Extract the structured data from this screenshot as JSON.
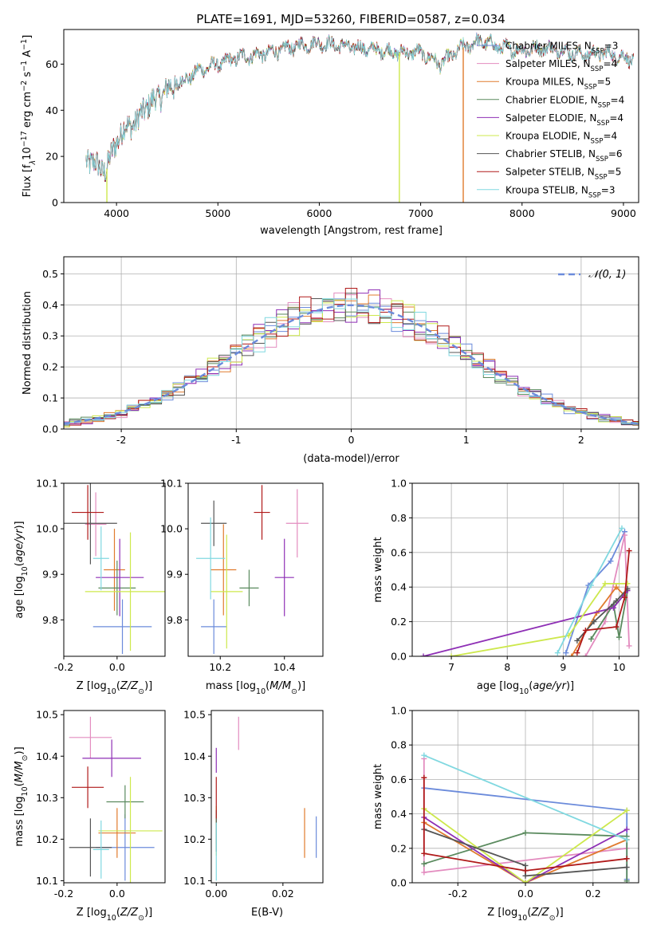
{
  "figure": {
    "title": "PLATE=1691, MJD=53260, FIBERID=0587, z=0.034"
  },
  "series": [
    {
      "name": "Chabrier MILES",
      "nssp": "3",
      "color": "#6b8bdb"
    },
    {
      "name": "Salpeter MILES",
      "nssp": "4",
      "color": "#e38cbf"
    },
    {
      "name": "Kroupa MILES",
      "nssp": "5",
      "color": "#e07b2e"
    },
    {
      "name": "Chabrier ELODIE",
      "nssp": "4",
      "color": "#5a8a5e"
    },
    {
      "name": "Salpeter ELODIE",
      "nssp": "4",
      "color": "#8e2fb5"
    },
    {
      "name": "Kroupa ELODIE",
      "nssp": "4",
      "color": "#cde84c"
    },
    {
      "name": "Chabrier STELIB",
      "nssp": "6",
      "color": "#555555"
    },
    {
      "name": "Salpeter STELIB",
      "nssp": "5",
      "color": "#b01a1a"
    },
    {
      "name": "Kroupa STELIB",
      "nssp": "3",
      "color": "#80d8e0"
    }
  ],
  "chart_data": [
    {
      "id": "spectrum",
      "type": "line",
      "xlabel": "wavelength [Angstrom, rest frame]",
      "ylabel_main": "Flux [f",
      "ylabel_sub": "λ",
      "ylabel_rest": "10",
      "ylabel_exp1": "−17",
      "ylabel_unit": " erg cm",
      "ylabel_exp2": "−2",
      "ylabel_s": " s",
      "ylabel_exp3": "−1",
      "ylabel_a": " A",
      "ylabel_exp4": "−1",
      "ylabel_end": "]",
      "xlim": [
        3480,
        9150
      ],
      "ylim": [
        0,
        75
      ],
      "xticks": [
        4000,
        5000,
        6000,
        7000,
        8000,
        9000
      ],
      "yticks": [
        0,
        20,
        40,
        60
      ],
      "legend_position": "right",
      "continuum_x": [
        3700,
        3800,
        3900,
        4000,
        4100,
        4200,
        4300,
        4400,
        4500,
        4600,
        4800,
        5000,
        5200,
        5400,
        5600,
        5800,
        6000,
        6200,
        6400,
        6600,
        6800,
        7000,
        7200,
        7400,
        7600,
        7800,
        8000,
        8200,
        8400,
        8600,
        8800,
        9000,
        9100
      ],
      "continuum_y": [
        19,
        16,
        14,
        27,
        33,
        35,
        42,
        45,
        49,
        51,
        57,
        60,
        63,
        64,
        66,
        68,
        69,
        68,
        67,
        66,
        65,
        65,
        60,
        67,
        70,
        67,
        66,
        67,
        66,
        64,
        65,
        63,
        62
      ],
      "drops": [
        {
          "x": 3905,
          "color": "#cde84c"
        },
        {
          "x": 6790,
          "color": "#cde84c"
        },
        {
          "x": 7420,
          "color": "#e07b2e"
        }
      ]
    },
    {
      "id": "residual-histogram",
      "type": "histogram",
      "xlabel": "(data-model)/error",
      "ylabel": "Normed distribution",
      "xlim": [
        -2.5,
        2.5
      ],
      "ylim": [
        0,
        0.555
      ],
      "xticks": [
        -2,
        -1,
        0,
        1,
        2
      ],
      "yticks": [
        0.0,
        0.1,
        0.2,
        0.3,
        0.4,
        0.5
      ],
      "bin_width": 0.1,
      "reference": {
        "label": "𝒩(0, 1)",
        "color": "#6b8bdb",
        "style": "dashed"
      },
      "legend_position": "top-right",
      "grid": true
    },
    {
      "id": "age-vs-z",
      "type": "errorbar",
      "xlabel": "Z [log10(Z/Z⊙)]",
      "ylabel": "age  [log10(age/yr)]",
      "xlim": [
        -0.2,
        0.18
      ],
      "ylim": [
        9.72,
        10.1
      ],
      "xticks": [
        -0.2,
        0.0
      ],
      "yticks": [
        9.8,
        9.9,
        10.0,
        10.1
      ],
      "points": [
        {
          "x": 0.02,
          "y": 9.785,
          "xerr": 0.11,
          "yerr": 0.06
        },
        {
          "x": -0.08,
          "y": 10.01,
          "xerr": 0.04,
          "yerr": 0.07
        },
        {
          "x": -0.01,
          "y": 9.91,
          "xerr": 0.04,
          "yerr": 0.09
        },
        {
          "x": 0.0,
          "y": 9.87,
          "xerr": 0.07,
          "yerr": 0.06
        },
        {
          "x": 0.01,
          "y": 9.893,
          "xerr": 0.09,
          "yerr": 0.085
        },
        {
          "x": 0.05,
          "y": 9.862,
          "xerr": 0.17,
          "yerr": 0.13
        },
        {
          "x": -0.1,
          "y": 10.012,
          "xerr": 0.1,
          "yerr": 0.09
        },
        {
          "x": -0.11,
          "y": 10.036,
          "xerr": 0.06,
          "yerr": 0.06
        },
        {
          "x": -0.06,
          "y": 9.935,
          "xerr": 0.03,
          "yerr": 0.07
        }
      ]
    },
    {
      "id": "age-vs-mass",
      "type": "errorbar",
      "xlabel": "mass [log10(M/M⊙)]",
      "xlim": [
        10.1,
        10.52
      ],
      "ylim": [
        9.72,
        10.1
      ],
      "xticks": [
        10.2,
        10.4
      ],
      "yticks": [
        9.8,
        9.9,
        10.0,
        10.1
      ],
      "points": [
        {
          "x": 10.18,
          "y": 9.785,
          "xerr": 0.04,
          "yerr": 0.06
        },
        {
          "x": 10.44,
          "y": 10.012,
          "xerr": 0.035,
          "yerr": 0.075
        },
        {
          "x": 10.21,
          "y": 9.91,
          "xerr": 0.04,
          "yerr": 0.1
        },
        {
          "x": 10.29,
          "y": 9.87,
          "xerr": 0.03,
          "yerr": 0.04
        },
        {
          "x": 10.4,
          "y": 9.893,
          "xerr": 0.03,
          "yerr": 0.085
        },
        {
          "x": 10.22,
          "y": 9.862,
          "xerr": 0.05,
          "yerr": 0.125
        },
        {
          "x": 10.18,
          "y": 10.012,
          "xerr": 0.04,
          "yerr": 0.05
        },
        {
          "x": 10.33,
          "y": 10.036,
          "xerr": 0.025,
          "yerr": 0.06
        },
        {
          "x": 10.17,
          "y": 9.935,
          "xerr": 0.045,
          "yerr": 0.09
        }
      ]
    },
    {
      "id": "mass-weight-vs-age",
      "type": "line",
      "xlabel": "age  [log10(age/yr)]",
      "ylabel": "mass weight",
      "xlim": [
        6.3,
        10.35
      ],
      "ylim": [
        0,
        1.0
      ],
      "xticks": [
        7,
        8,
        9,
        10
      ],
      "yticks": [
        0.0,
        0.2,
        0.4,
        0.6,
        0.8,
        1.0
      ],
      "grid": true,
      "lines": [
        {
          "x": [
            9.05,
            9.45,
            9.85,
            10.1
          ],
          "y": [
            0.02,
            0.41,
            0.55,
            0.72
          ]
        },
        {
          "x": [
            9.4,
            9.75,
            10.1,
            10.18
          ],
          "y": [
            0.0,
            0.2,
            0.7,
            0.06
          ]
        },
        {
          "x": [
            9.15,
            9.6,
            9.95,
            10.1
          ],
          "y": [
            0.0,
            0.25,
            0.4,
            0.35
          ]
        },
        {
          "x": [
            9.5,
            9.9,
            10.0,
            10.15
          ],
          "y": [
            0.1,
            0.3,
            0.11,
            0.38
          ]
        },
        {
          "x": [
            6.5,
            9.9,
            10.15
          ],
          "y": [
            0.0,
            0.28,
            0.38
          ]
        },
        {
          "x": [
            7.0,
            9.1,
            9.75,
            10.15
          ],
          "y": [
            0.0,
            0.12,
            0.42,
            0.42
          ]
        },
        {
          "x": [
            9.25,
            9.55,
            9.95,
            10.15
          ],
          "y": [
            0.09,
            0.2,
            0.32,
            0.39
          ]
        },
        {
          "x": [
            9.25,
            9.4,
            9.95,
            10.1,
            10.18
          ],
          "y": [
            0.02,
            0.15,
            0.17,
            0.34,
            0.61
          ]
        },
        {
          "x": [
            8.9,
            9.5,
            10.05
          ],
          "y": [
            0.02,
            0.41,
            0.74
          ]
        }
      ]
    },
    {
      "id": "mass-vs-z",
      "type": "errorbar",
      "xlabel": "Z [log10(Z/Z⊙)]",
      "ylabel": "mass [log10(M/M⊙)]",
      "xlim": [
        -0.2,
        0.18
      ],
      "ylim": [
        10.095,
        10.51
      ],
      "xticks": [
        -0.2,
        0.0
      ],
      "yticks": [
        10.1,
        10.2,
        10.3,
        10.4,
        10.5
      ],
      "points": [
        {
          "x": 0.03,
          "y": 10.18,
          "xerr": 0.11,
          "yerr": 0.08
        },
        {
          "x": -0.1,
          "y": 10.445,
          "xerr": 0.08,
          "yerr": 0.05
        },
        {
          "x": 0.0,
          "y": 10.215,
          "xerr": 0.07,
          "yerr": 0.06
        },
        {
          "x": 0.03,
          "y": 10.29,
          "xerr": 0.07,
          "yerr": 0.04
        },
        {
          "x": -0.02,
          "y": 10.395,
          "xerr": 0.11,
          "yerr": 0.045
        },
        {
          "x": 0.05,
          "y": 10.22,
          "xerr": 0.12,
          "yerr": 0.13
        },
        {
          "x": -0.1,
          "y": 10.18,
          "xerr": 0.08,
          "yerr": 0.07
        },
        {
          "x": -0.11,
          "y": 10.325,
          "xerr": 0.06,
          "yerr": 0.05
        },
        {
          "x": -0.06,
          "y": 10.175,
          "xerr": 0.03,
          "yerr": 0.07
        }
      ]
    },
    {
      "id": "mass-vs-ebv",
      "type": "errorbar",
      "xlabel": "E(B-V)",
      "xlim": [
        -0.0015,
        0.032
      ],
      "ylim": [
        10.095,
        10.51
      ],
      "xticks": [
        0.0,
        0.02
      ],
      "yticks": [
        10.1,
        10.2,
        10.3,
        10.4,
        10.5
      ],
      "points": [
        {
          "x": 0.03,
          "y": 10.205,
          "xerr": 0.0,
          "yerr": 0.05
        },
        {
          "x": 0.0067,
          "y": 10.455,
          "xerr": 0.0,
          "yerr": 0.04
        },
        {
          "x": 0.0265,
          "y": 10.215,
          "xerr": 0.0,
          "yerr": 0.06
        },
        {
          "x": 0.0,
          "y": 10.22,
          "xerr": 0.0,
          "yerr": 0.03
        },
        {
          "x": 0.0,
          "y": 10.39,
          "xerr": 0.0,
          "yerr": 0.03
        },
        {
          "x": 0.0,
          "y": 10.22,
          "xerr": 0.0,
          "yerr": 0.06
        },
        {
          "x": 0.0,
          "y": 10.22,
          "xerr": 0.0,
          "yerr": 0.05
        },
        {
          "x": 0.0,
          "y": 10.3,
          "xerr": 0.0,
          "yerr": 0.05
        },
        {
          "x": 0.0,
          "y": 10.17,
          "xerr": 0.0,
          "yerr": 0.07
        }
      ]
    },
    {
      "id": "mass-weight-vs-z",
      "type": "line",
      "xlabel": "Z [log10(Z/Z⊙)]",
      "ylabel": "mass weight",
      "xlim": [
        -0.335,
        0.335
      ],
      "ylim": [
        0,
        1.0
      ],
      "xticks": [
        -0.2,
        0.0,
        0.2
      ],
      "yticks": [
        0.0,
        0.2,
        0.4,
        0.6,
        0.8,
        1.0
      ],
      "grid": true,
      "lines": [
        {
          "x": [
            -0.3,
            0.3,
            0.3
          ],
          "y": [
            0.55,
            0.42,
            0.02
          ]
        },
        {
          "x": [
            -0.3,
            -0.3,
            0.3
          ],
          "y": [
            0.72,
            0.06,
            0.2
          ]
        },
        {
          "x": [
            -0.3,
            0.0,
            0.3
          ],
          "y": [
            0.35,
            0.0,
            0.25
          ]
        },
        {
          "x": [
            -0.3,
            0.0,
            0.3,
            0.3
          ],
          "y": [
            0.11,
            0.29,
            0.27,
            0.01
          ]
        },
        {
          "x": [
            -0.3,
            0.0,
            0.3
          ],
          "y": [
            0.38,
            0.0,
            0.31
          ]
        },
        {
          "x": [
            -0.3,
            0.0,
            0.3
          ],
          "y": [
            0.43,
            0.0,
            0.42
          ]
        },
        {
          "x": [
            -0.3,
            0.0,
            0.0,
            0.3
          ],
          "y": [
            0.31,
            0.1,
            0.04,
            0.09
          ]
        },
        {
          "x": [
            -0.3,
            -0.3,
            0.0,
            0.3
          ],
          "y": [
            0.61,
            0.17,
            0.07,
            0.14
          ]
        },
        {
          "x": [
            -0.3,
            0.3
          ],
          "y": [
            0.74,
            0.25
          ]
        }
      ]
    }
  ]
}
